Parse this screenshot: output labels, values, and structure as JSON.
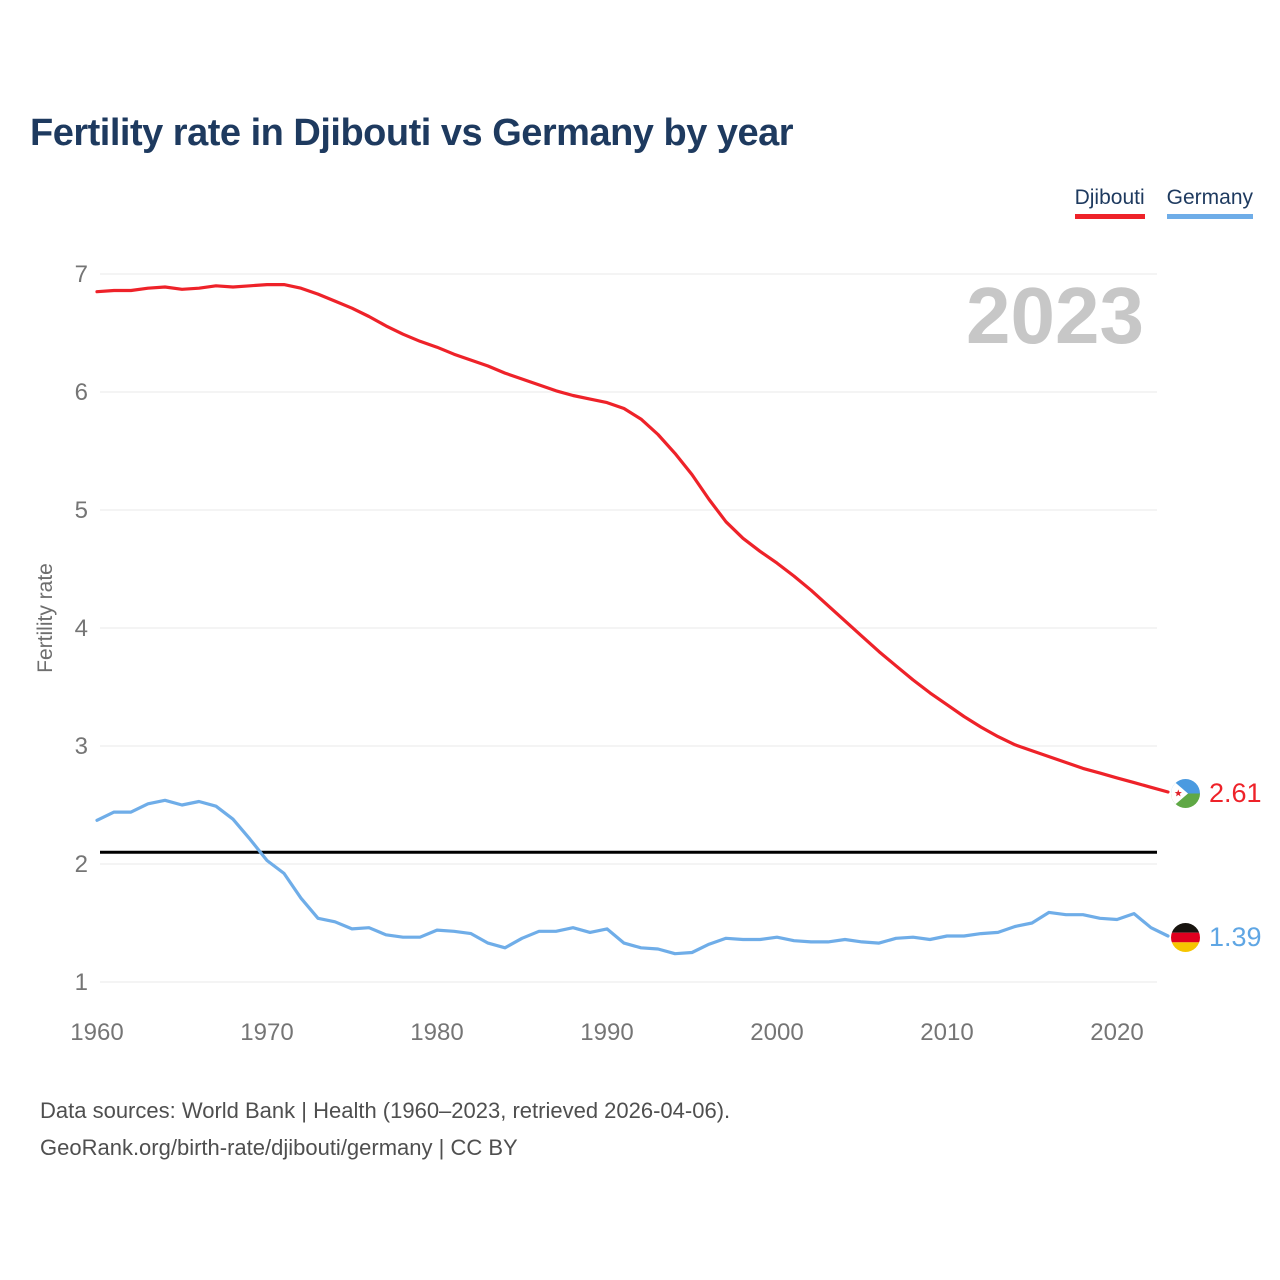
{
  "header": {
    "title": "Fertility rate in Djibouti vs Germany by year"
  },
  "legend": {
    "items": [
      {
        "label": "Djibouti",
        "color": "#ee2229"
      },
      {
        "label": "Germany",
        "color": "#6fade8"
      }
    ]
  },
  "watermark": "2023",
  "axes": {
    "y_label": "Fertility rate",
    "y_ticks": [
      1,
      2,
      3,
      4,
      5,
      6,
      7
    ],
    "x_ticks": [
      1960,
      1970,
      1980,
      1990,
      2000,
      2010,
      2020
    ]
  },
  "end_labels": [
    {
      "value": "2.61",
      "color": "#ee2229",
      "icon": "djibouti-flag-icon"
    },
    {
      "value": "1.39",
      "color": "#5fa6e4",
      "icon": "germany-flag-icon"
    }
  ],
  "flags": {
    "djibouti": {
      "blue": "#4a9ae0",
      "green": "#5fa845",
      "triangle": "#ffffff",
      "star": "#e0252d"
    },
    "germany": {
      "black": "#18140f",
      "red": "#e0001f",
      "gold": "#f6c500"
    }
  },
  "footer": {
    "line1": "Data sources: World Bank | Health (1960–2023, retrieved 2026-04-06).",
    "line2": "GeoRank.org/birth-rate/djibouti/germany | CC BY"
  },
  "chart_data": {
    "type": "line",
    "title": "Fertility rate in Djibouti vs Germany by year",
    "xlabel": "",
    "ylabel": "Fertility rate",
    "xlim": [
      1960,
      2023
    ],
    "ylim": [
      1,
      7
    ],
    "x_ticks": [
      1960,
      1970,
      1980,
      1990,
      2000,
      2010,
      2020
    ],
    "y_ticks": [
      1,
      2,
      3,
      4,
      5,
      6,
      7
    ],
    "grid": "horizontal",
    "legend_position": "top-right",
    "watermark_year": "2023",
    "reference_line": {
      "value": 2.1,
      "color": "#000000",
      "meaning": "replacement rate"
    },
    "x": [
      1960,
      1961,
      1962,
      1963,
      1964,
      1965,
      1966,
      1967,
      1968,
      1969,
      1970,
      1971,
      1972,
      1973,
      1974,
      1975,
      1976,
      1977,
      1978,
      1979,
      1980,
      1981,
      1982,
      1983,
      1984,
      1985,
      1986,
      1987,
      1988,
      1989,
      1990,
      1991,
      1992,
      1993,
      1994,
      1995,
      1996,
      1997,
      1998,
      1999,
      2000,
      2001,
      2002,
      2003,
      2004,
      2005,
      2006,
      2007,
      2008,
      2009,
      2010,
      2011,
      2012,
      2013,
      2014,
      2015,
      2016,
      2017,
      2018,
      2019,
      2020,
      2021,
      2022,
      2023
    ],
    "series": [
      {
        "name": "Djibouti",
        "color": "#ee2229",
        "final_value": 2.61,
        "values": [
          6.85,
          6.86,
          6.86,
          6.88,
          6.89,
          6.87,
          6.88,
          6.9,
          6.89,
          6.9,
          6.91,
          6.91,
          6.88,
          6.83,
          6.77,
          6.71,
          6.64,
          6.56,
          6.49,
          6.43,
          6.38,
          6.32,
          6.27,
          6.22,
          6.16,
          6.11,
          6.06,
          6.01,
          5.97,
          5.94,
          5.91,
          5.86,
          5.77,
          5.64,
          5.48,
          5.3,
          5.09,
          4.9,
          4.76,
          4.65,
          4.55,
          4.44,
          4.32,
          4.19,
          4.06,
          3.93,
          3.8,
          3.68,
          3.56,
          3.45,
          3.35,
          3.25,
          3.16,
          3.08,
          3.01,
          2.96,
          2.91,
          2.86,
          2.81,
          2.77,
          2.73,
          2.69,
          2.65,
          2.61
        ]
      },
      {
        "name": "Germany",
        "color": "#6fade8",
        "final_value": 1.39,
        "values": [
          2.37,
          2.44,
          2.44,
          2.51,
          2.54,
          2.5,
          2.53,
          2.49,
          2.38,
          2.21,
          2.03,
          1.92,
          1.71,
          1.54,
          1.51,
          1.45,
          1.46,
          1.4,
          1.38,
          1.38,
          1.44,
          1.43,
          1.41,
          1.33,
          1.29,
          1.37,
          1.43,
          1.43,
          1.46,
          1.42,
          1.45,
          1.33,
          1.29,
          1.28,
          1.24,
          1.25,
          1.32,
          1.37,
          1.36,
          1.36,
          1.38,
          1.35,
          1.34,
          1.34,
          1.36,
          1.34,
          1.33,
          1.37,
          1.38,
          1.36,
          1.39,
          1.39,
          1.41,
          1.42,
          1.47,
          1.5,
          1.59,
          1.57,
          1.57,
          1.54,
          1.53,
          1.58,
          1.46,
          1.39
        ]
      }
    ]
  }
}
